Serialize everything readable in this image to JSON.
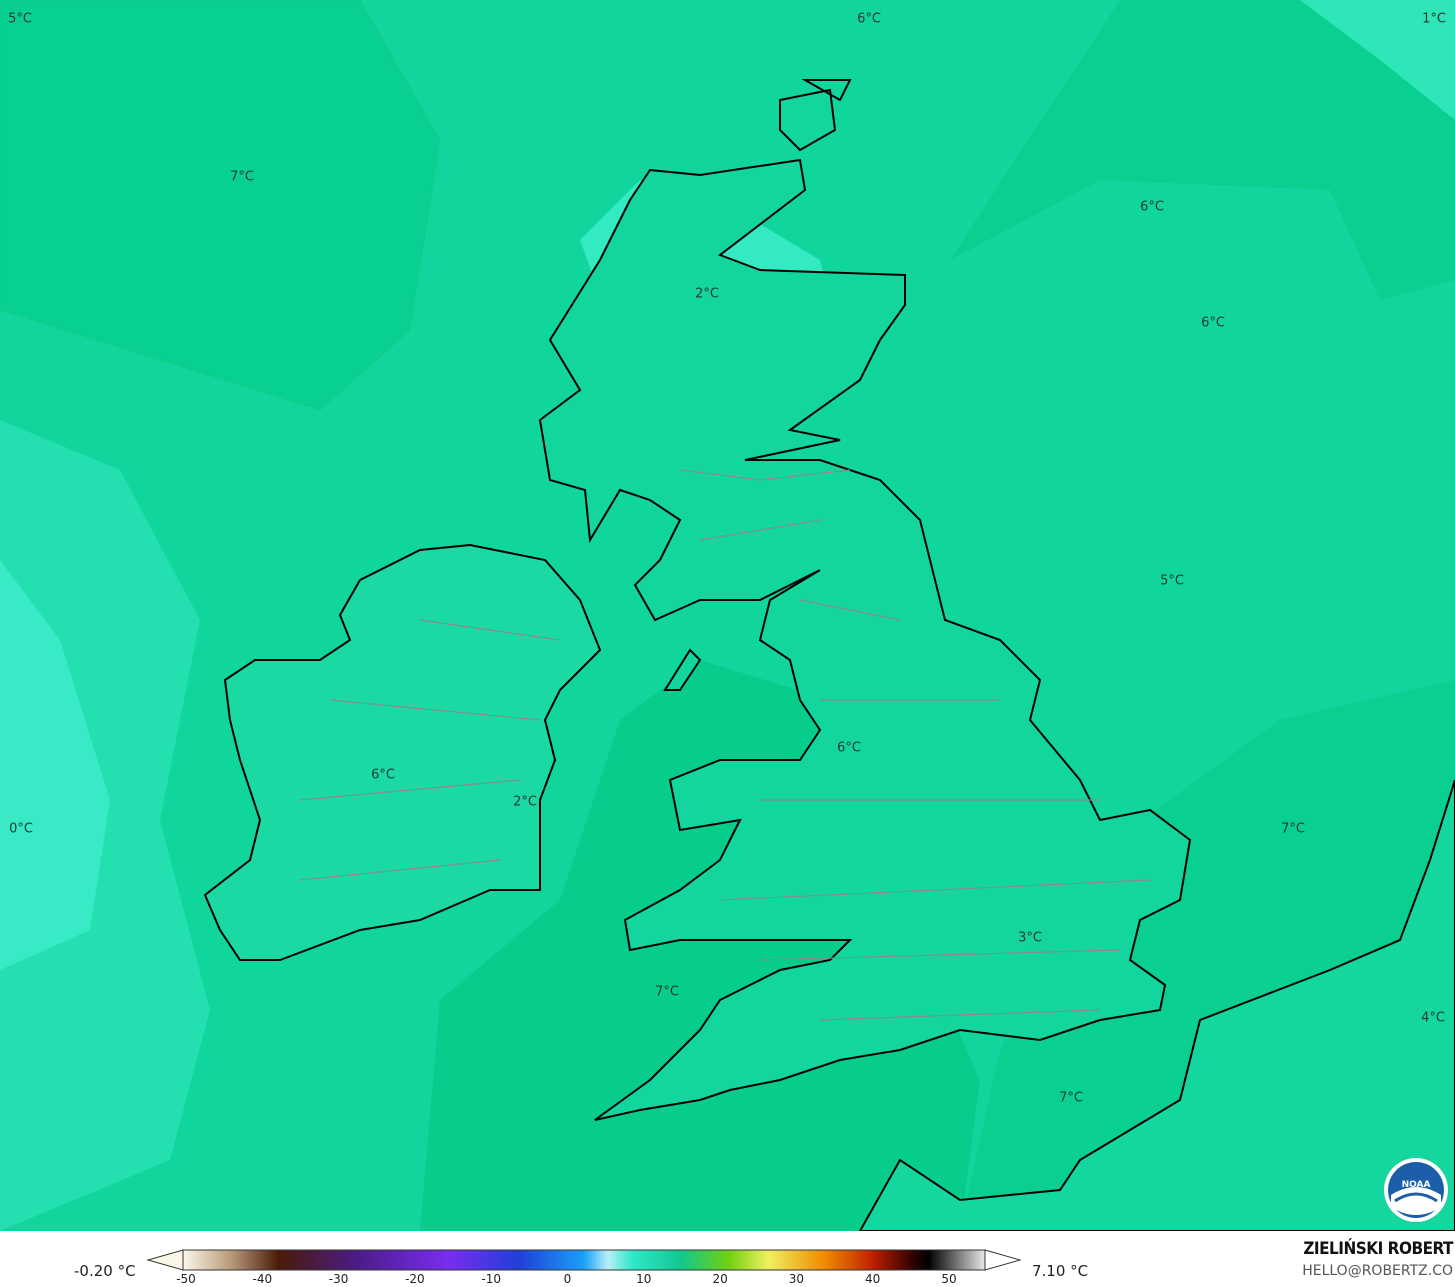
{
  "map": {
    "contour_labels": [
      {
        "text": "5°C"
      },
      {
        "text": "6°C"
      },
      {
        "text": "1°C"
      },
      {
        "text": "7°C"
      },
      {
        "text": "6°C"
      },
      {
        "text": "2°C"
      },
      {
        "text": "6°C"
      },
      {
        "text": "5°C"
      },
      {
        "text": "6°C"
      },
      {
        "text": "6°C"
      },
      {
        "text": "2°C"
      },
      {
        "text": "0°C"
      },
      {
        "text": "7°C"
      },
      {
        "text": "3°C"
      },
      {
        "text": "7°C"
      },
      {
        "text": "4°C"
      },
      {
        "text": "7°C"
      }
    ],
    "colors": {
      "base": "#10d59c",
      "light": "#2ee6b8",
      "lighter": "#3ff0cc",
      "dark": "#06cf8e",
      "coast": "#000000",
      "borders": "#8a8a8a"
    }
  },
  "colorbar": {
    "min_label": "-0.20 °C",
    "max_label": "7.10 °C",
    "ticks": [
      "-50",
      "-40",
      "-30",
      "-20",
      "-10",
      "0",
      "10",
      "20",
      "30",
      "40",
      "50"
    ],
    "range": [
      -50,
      50
    ]
  },
  "credits": {
    "author": "ZIELIŃSKI ROBERT",
    "email": "HELLO@ROBERTZ.CO",
    "logo": "NOAA"
  }
}
